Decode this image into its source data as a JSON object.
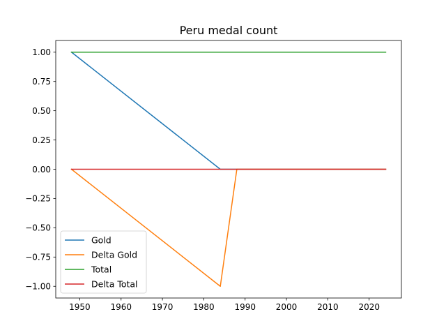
{
  "chart_data": {
    "type": "line",
    "title": "Peru medal count",
    "xlabel": "",
    "ylabel": "",
    "xlim": [
      1944.2,
      2027.8
    ],
    "ylim": [
      -1.1,
      1.1
    ],
    "x_ticks": [
      1950,
      1960,
      1970,
      1980,
      1990,
      2000,
      2010,
      2020
    ],
    "y_ticks": [
      -1.0,
      -0.75,
      -0.5,
      -0.25,
      0.0,
      0.25,
      0.5,
      0.75,
      1.0
    ],
    "y_tick_labels": [
      "−1.00",
      "−0.75",
      "−0.50",
      "−0.25",
      "0.00",
      "0.25",
      "0.50",
      "0.75",
      "1.00"
    ],
    "grid": false,
    "legend_position": "lower-left",
    "series": [
      {
        "name": "Gold",
        "color": "#1f77b4",
        "x": [
          1948,
          1984,
          1988,
          2024
        ],
        "y": [
          1,
          0,
          0,
          0
        ]
      },
      {
        "name": "Delta Gold",
        "color": "#ff7f0e",
        "x": [
          1948,
          1984,
          1988,
          2024
        ],
        "y": [
          0,
          -1,
          0,
          0
        ]
      },
      {
        "name": "Total",
        "color": "#2ca02c",
        "x": [
          1948,
          1984,
          1988,
          2024
        ],
        "y": [
          1,
          1,
          1,
          1
        ]
      },
      {
        "name": "Delta Total",
        "color": "#d62728",
        "x": [
          1948,
          1984,
          1988,
          2024
        ],
        "y": [
          0,
          0,
          0,
          0
        ]
      }
    ]
  }
}
